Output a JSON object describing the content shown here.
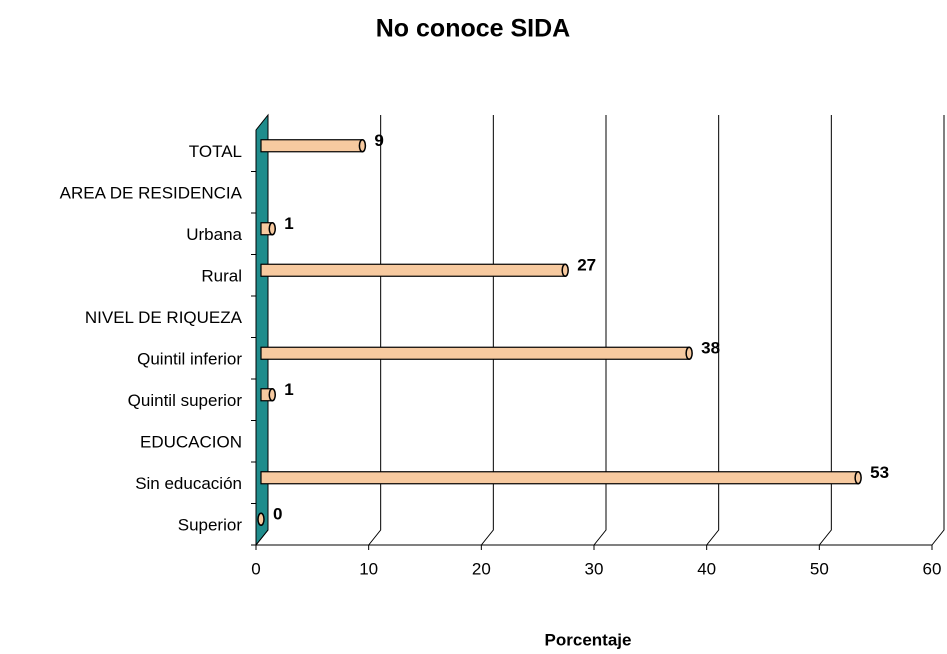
{
  "chart_data": {
    "type": "bar",
    "orientation": "horizontal",
    "title": "No conoce SIDA",
    "x_label": "Porcentaje",
    "categories": [
      "TOTAL",
      "AREA DE RESIDENCIA",
      "Urbana",
      "Rural",
      "NIVEL DE RIQUEZA",
      "Quintil inferior",
      "Quintil superior",
      "EDUCACION",
      "Sin educación",
      "Superior"
    ],
    "values": [
      9,
      null,
      1,
      27,
      null,
      38,
      1,
      null,
      53,
      0
    ],
    "color": "#f7caa0",
    "wall_color": "#1f8c8c",
    "xlim": [
      0,
      60
    ],
    "xticks": [
      0,
      10,
      20,
      30,
      40,
      50,
      60
    ],
    "grid": true
  }
}
